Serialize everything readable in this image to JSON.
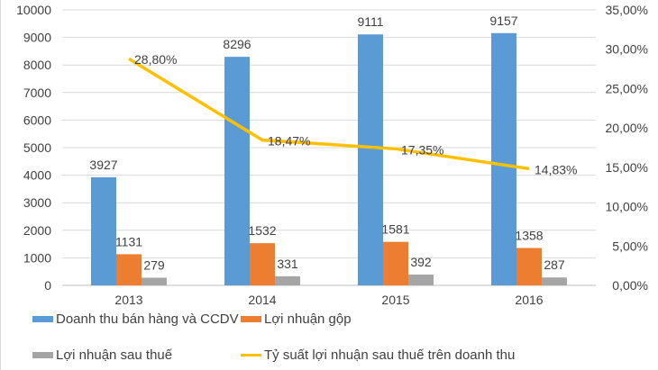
{
  "chart_data": {
    "type": "bar",
    "categories": [
      "2013",
      "2014",
      "2015",
      "2016"
    ],
    "series": [
      {
        "name": "Doanh thu bán hàng và CCDV",
        "type": "bar",
        "axis": "left",
        "color": "#5b9bd5",
        "values": [
          3927,
          8296,
          9111,
          9157
        ],
        "labels": [
          "3927",
          "8296",
          "9111",
          "9157"
        ]
      },
      {
        "name": "Lợi nhuận gộp",
        "type": "bar",
        "axis": "left",
        "color": "#ed7d31",
        "values": [
          1131,
          1532,
          1581,
          1358
        ],
        "labels": [
          "1131",
          "1532",
          "1581",
          "1358"
        ]
      },
      {
        "name": "Lợi nhuận sau thuế",
        "type": "bar",
        "axis": "left",
        "color": "#a5a5a5",
        "values": [
          279,
          331,
          392,
          287
        ],
        "labels": [
          "279",
          "331",
          "392",
          "287"
        ]
      },
      {
        "name": "Tỷ suất lợi nhuận sau thuế trên doanh thu",
        "type": "line",
        "axis": "right",
        "color": "#ffc000",
        "values": [
          28.8,
          18.47,
          17.35,
          14.83
        ],
        "labels": [
          "28,80%",
          "18,47%",
          "17,35%",
          "14,83%"
        ]
      }
    ],
    "ylim": [
      0,
      10000
    ],
    "y2lim": [
      0,
      35
    ],
    "yticks": [
      "0",
      "1000",
      "2000",
      "3000",
      "4000",
      "5000",
      "6000",
      "7000",
      "8000",
      "9000",
      "10000"
    ],
    "y2ticks": [
      "0,00%",
      "5,00%",
      "10,00%",
      "15,00%",
      "20,00%",
      "25,00%",
      "30,00%",
      "35,00%"
    ],
    "grid": true,
    "legend_position": "bottom"
  }
}
